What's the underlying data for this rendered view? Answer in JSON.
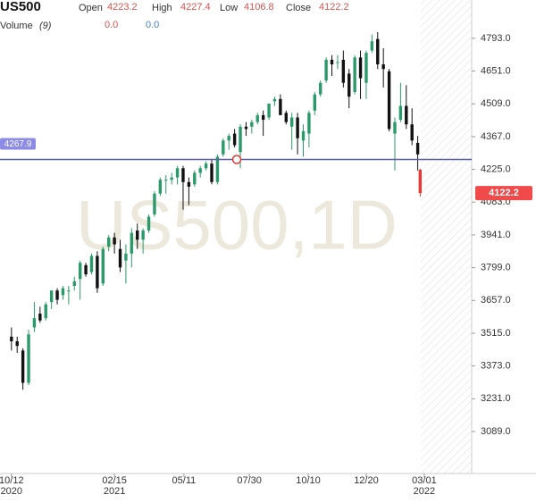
{
  "chart_data": {
    "type": "candlestick",
    "symbol": "US500",
    "watermark": "US500,1D",
    "ohlc_labels": [
      "Open",
      "High",
      "Low",
      "Close"
    ],
    "volume_label": "Volume",
    "volume_period": "(9)",
    "volume_values": [
      "0.0",
      "0.0"
    ],
    "x": [
      "2020-10-12",
      "2020-10-19",
      "2020-10-26",
      "2020-11-02",
      "2020-11-09",
      "2020-11-16",
      "2020-11-23",
      "2020-11-30",
      "2020-12-07",
      "2020-12-14",
      "2020-12-21",
      "2020-12-28",
      "2021-01-04",
      "2021-01-11",
      "2021-01-18",
      "2021-01-25",
      "2021-02-01",
      "2021-02-08",
      "2021-02-15",
      "2021-02-22",
      "2021-03-01",
      "2021-03-08",
      "2021-03-15",
      "2021-03-22",
      "2021-03-29",
      "2021-04-05",
      "2021-04-12",
      "2021-04-19",
      "2021-04-26",
      "2021-05-03",
      "2021-05-10",
      "2021-05-17",
      "2021-05-24",
      "2021-05-31",
      "2021-06-07",
      "2021-06-14",
      "2021-06-21",
      "2021-06-28",
      "2021-07-05",
      "2021-07-12",
      "2021-07-19",
      "2021-07-26",
      "2021-08-02",
      "2021-08-09",
      "2021-08-16",
      "2021-08-23",
      "2021-08-30",
      "2021-09-06",
      "2021-09-13",
      "2021-09-20",
      "2021-09-27",
      "2021-10-04",
      "2021-10-11",
      "2021-10-18",
      "2021-10-25",
      "2021-11-01",
      "2021-11-08",
      "2021-11-15",
      "2021-11-22",
      "2021-11-29",
      "2021-12-06",
      "2021-12-13",
      "2021-12-20",
      "2021-12-27",
      "2022-01-03",
      "2022-01-10",
      "2022-01-17",
      "2022-01-24",
      "2022-01-31",
      "2022-02-07",
      "2022-02-14",
      "2022-02-21",
      "2022-02-24"
    ],
    "open": [
      3500,
      3480,
      3440,
      3300,
      3540,
      3600,
      3580,
      3650,
      3700,
      3680,
      3700,
      3720,
      3750,
      3810,
      3780,
      3850,
      3730,
      3890,
      3930,
      3880,
      3830,
      3860,
      3960,
      3920,
      3960,
      4030,
      4120,
      4180,
      4180,
      4190,
      4230,
      4170,
      4160,
      4210,
      4230,
      4250,
      4170,
      4290,
      4350,
      4380,
      4300,
      4410,
      4410,
      4430,
      4460,
      4450,
      4520,
      4530,
      4470,
      4410,
      4450,
      4350,
      4380,
      4480,
      4550,
      4610,
      4700,
      4690,
      4700,
      4640,
      4560,
      4710,
      4600,
      4740,
      4790,
      4680,
      4650,
      4380,
      4440,
      4500,
      4420,
      4340,
      4223.2
    ],
    "high": [
      3540,
      3500,
      3450,
      3530,
      3650,
      3630,
      3650,
      3700,
      3710,
      3720,
      3720,
      3760,
      3830,
      3820,
      3860,
      3870,
      3890,
      3940,
      3950,
      3920,
      3900,
      3970,
      3990,
      3970,
      4030,
      4130,
      4190,
      4200,
      4210,
      4240,
      4240,
      4190,
      4220,
      4240,
      4260,
      4270,
      4290,
      4360,
      4380,
      4400,
      4420,
      4430,
      4440,
      4470,
      4480,
      4510,
      4540,
      4550,
      4480,
      4470,
      4470,
      4420,
      4480,
      4560,
      4610,
      4710,
      4720,
      4720,
      4740,
      4660,
      4720,
      4740,
      4740,
      4810,
      4820,
      4750,
      4660,
      4450,
      4600,
      4590,
      4490,
      4370,
      4227.4
    ],
    "low": [
      3440,
      3430,
      3270,
      3290,
      3520,
      3560,
      3570,
      3620,
      3640,
      3660,
      3640,
      3700,
      3660,
      3760,
      3770,
      3690,
      3720,
      3870,
      3860,
      3780,
      3730,
      3800,
      3880,
      3860,
      3950,
      4020,
      4110,
      4120,
      4160,
      4160,
      4050,
      4070,
      4150,
      4190,
      4220,
      4160,
      4160,
      4280,
      4310,
      4320,
      4230,
      4370,
      4380,
      4420,
      4370,
      4440,
      4500,
      4460,
      4420,
      4310,
      4290,
      4280,
      4320,
      4460,
      4540,
      4600,
      4630,
      4660,
      4580,
      4490,
      4550,
      4530,
      4530,
      4730,
      4660,
      4580,
      4390,
      4220,
      4430,
      4400,
      4330,
      4220,
      4106.8
    ],
    "close": [
      3480,
      3460,
      3300,
      3510,
      3580,
      3570,
      3640,
      3700,
      3660,
      3710,
      3700,
      3740,
      3820,
      3770,
      3850,
      3710,
      3880,
      3930,
      3900,
      3800,
      3860,
      3950,
      3920,
      3960,
      4020,
      4120,
      4180,
      4180,
      4190,
      4230,
      4170,
      4150,
      4210,
      4230,
      4250,
      4170,
      4280,
      4350,
      4370,
      4330,
      4410,
      4400,
      4430,
      4460,
      4440,
      4510,
      4530,
      4460,
      4430,
      4450,
      4360,
      4390,
      4470,
      4550,
      4600,
      4700,
      4680,
      4690,
      4600,
      4540,
      4710,
      4620,
      4730,
      4780,
      4680,
      4660,
      4400,
      4430,
      4500,
      4420,
      4350,
      4290,
      4122.2
    ],
    "up_color": "#2a9a6a",
    "down_color": "#111111",
    "last_color": "#e53935",
    "hline": 4267.9,
    "hline_color": "#5b5ea6",
    "xlim": [
      "2020-09-28",
      "2022-04-28"
    ],
    "xticks": [
      {
        "value": "2020-10-12",
        "label": "10/12"
      },
      {
        "value": "2021-02-15",
        "label": "02/15"
      },
      {
        "value": "2021-05-11",
        "label": "05/11"
      },
      {
        "value": "2021-07-30",
        "label": "07/30"
      },
      {
        "value": "2021-10-10",
        "label": "10/10"
      },
      {
        "value": "2021-12-20",
        "label": "12/20"
      },
      {
        "value": "2022-03-01",
        "label": "03/01"
      }
    ],
    "year_labels": [
      {
        "value": "2020-10-12",
        "label": "2020"
      },
      {
        "value": "2021-02-15",
        "label": "2021"
      },
      {
        "value": "2022-03-01",
        "label": "2022"
      }
    ],
    "ylim": [
      2907,
      4959
    ],
    "yticks": [
      {
        "value": 3089,
        "label": "3089.0"
      },
      {
        "value": 3231,
        "label": "3231.0"
      },
      {
        "value": 3373,
        "label": "3373.0"
      },
      {
        "value": 3515,
        "label": "3515.0"
      },
      {
        "value": 3657,
        "label": "3657.0"
      },
      {
        "value": 3799,
        "label": "3799.0"
      },
      {
        "value": 3941,
        "label": "3941.0"
      },
      {
        "value": 4083,
        "label": "4083.0"
      },
      {
        "value": 4225,
        "label": "4225.0"
      },
      {
        "value": 4367,
        "label": "4367.0"
      },
      {
        "value": 4509,
        "label": "4509.0"
      },
      {
        "value": 4651,
        "label": "4651.0"
      },
      {
        "value": 4793,
        "label": "4793.0"
      }
    ]
  }
}
